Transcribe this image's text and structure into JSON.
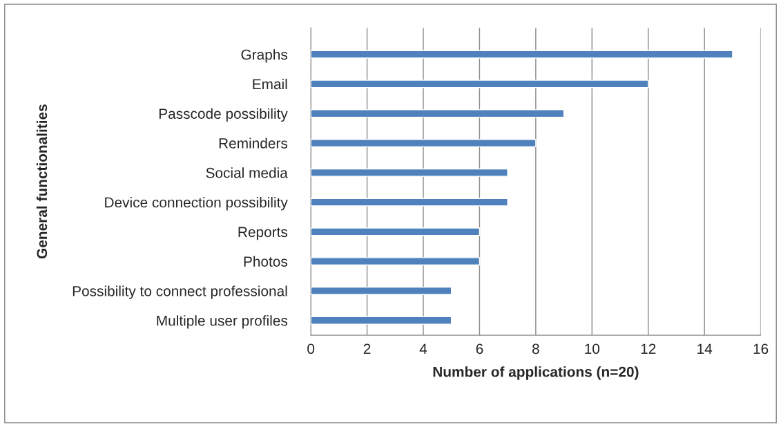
{
  "chart_data": {
    "type": "bar",
    "orientation": "horizontal",
    "xlabel": "Number of applications (n=20)",
    "ylabel": "General functionalities",
    "categories": [
      "Graphs",
      "Email",
      "Passcode possibility",
      "Reminders",
      "Social media",
      "Device connection possibility",
      "Reports",
      "Photos",
      "Possibility to connect professional",
      "Multiple user profiles"
    ],
    "values": [
      15,
      12,
      9,
      8,
      7,
      7,
      6,
      6,
      5,
      5
    ],
    "color": "#4f81bd",
    "xlim": [
      0,
      16
    ],
    "xticks": [
      0,
      2,
      4,
      6,
      8,
      10,
      12,
      14,
      16
    ],
    "grid": "x",
    "legend": false
  }
}
